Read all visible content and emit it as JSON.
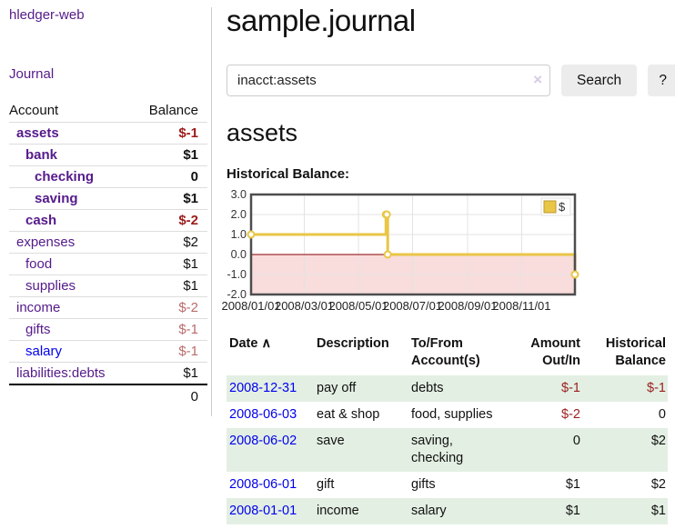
{
  "sidebar": {
    "brand": "hledger-web",
    "journal_link": "Journal",
    "accounts_table": {
      "col_account": "Account",
      "col_balance": "Balance",
      "rows": [
        {
          "account": "assets",
          "balance": "$-1"
        },
        {
          "account": "bank",
          "balance": "$1"
        },
        {
          "account": "checking",
          "balance": "0"
        },
        {
          "account": "saving",
          "balance": "$1"
        },
        {
          "account": "cash",
          "balance": "$-2"
        },
        {
          "account": "expenses",
          "balance": "$2"
        },
        {
          "account": "food",
          "balance": "$1"
        },
        {
          "account": "supplies",
          "balance": "$1"
        },
        {
          "account": "income",
          "balance": "$-2"
        },
        {
          "account": "gifts",
          "balance": "$-1"
        },
        {
          "account": "salary",
          "balance": "$-1"
        },
        {
          "account": "liabilities:debts",
          "balance": "$1"
        }
      ],
      "total": "0"
    }
  },
  "header": {
    "title": "sample.journal"
  },
  "search": {
    "value": "inacct:assets",
    "button_label": "Search",
    "help_label": "?"
  },
  "icons": {
    "clear": "×",
    "sort_asc": "∧"
  },
  "main": {
    "account_heading": "assets",
    "chart_heading": "Historical Balance:"
  },
  "chart_data": {
    "type": "line",
    "title": "Historical Balance",
    "step": true,
    "series": [
      {
        "name": "$",
        "color": "#e9c646",
        "points": [
          [
            "2008/01/01",
            1
          ],
          [
            "2008/06/01",
            2
          ],
          [
            "2008/06/02",
            2
          ],
          [
            "2008/06/03",
            0
          ],
          [
            "2008/12/31",
            -1
          ]
        ]
      }
    ],
    "ylim": [
      -2,
      3
    ],
    "yticks": [
      3.0,
      2.0,
      1.0,
      0.0,
      -1.0,
      -2.0
    ],
    "xticks": [
      "2008/01/01",
      "2008/03/01",
      "2008/05/01",
      "2008/07/01",
      "2008/09/01",
      "2008/11/01"
    ],
    "xrange": [
      "2008/01/01",
      "2008/12/31"
    ],
    "legend": "$",
    "legend_position": "top-right",
    "grid": true,
    "negative_region_color": "#f9dcdc",
    "zero_line_color": "#8b0000"
  },
  "transactions": {
    "headers": {
      "date": "Date",
      "description": "Description",
      "tofrom_line1": "To/From",
      "tofrom_line2": "Account(s)",
      "amount_line1": "Amount",
      "amount_line2": "Out/In",
      "balance_line1": "Historical",
      "balance_line2": "Balance"
    },
    "rows": [
      {
        "date": "2008-12-31",
        "description": "pay off",
        "accounts": "debts",
        "amount": "$-1",
        "balance": "$-1"
      },
      {
        "date": "2008-06-03",
        "description": "eat & shop",
        "accounts": "food, supplies",
        "amount": "$-2",
        "balance": "0"
      },
      {
        "date": "2008-06-02",
        "description": "save",
        "accounts": "saving, checking",
        "amount": "0",
        "balance": "$2"
      },
      {
        "date": "2008-06-01",
        "description": "gift",
        "accounts": "gifts",
        "amount": "$1",
        "balance": "$2"
      },
      {
        "date": "2008-01-01",
        "description": "income",
        "accounts": "salary",
        "amount": "$1",
        "balance": "$1"
      }
    ]
  }
}
